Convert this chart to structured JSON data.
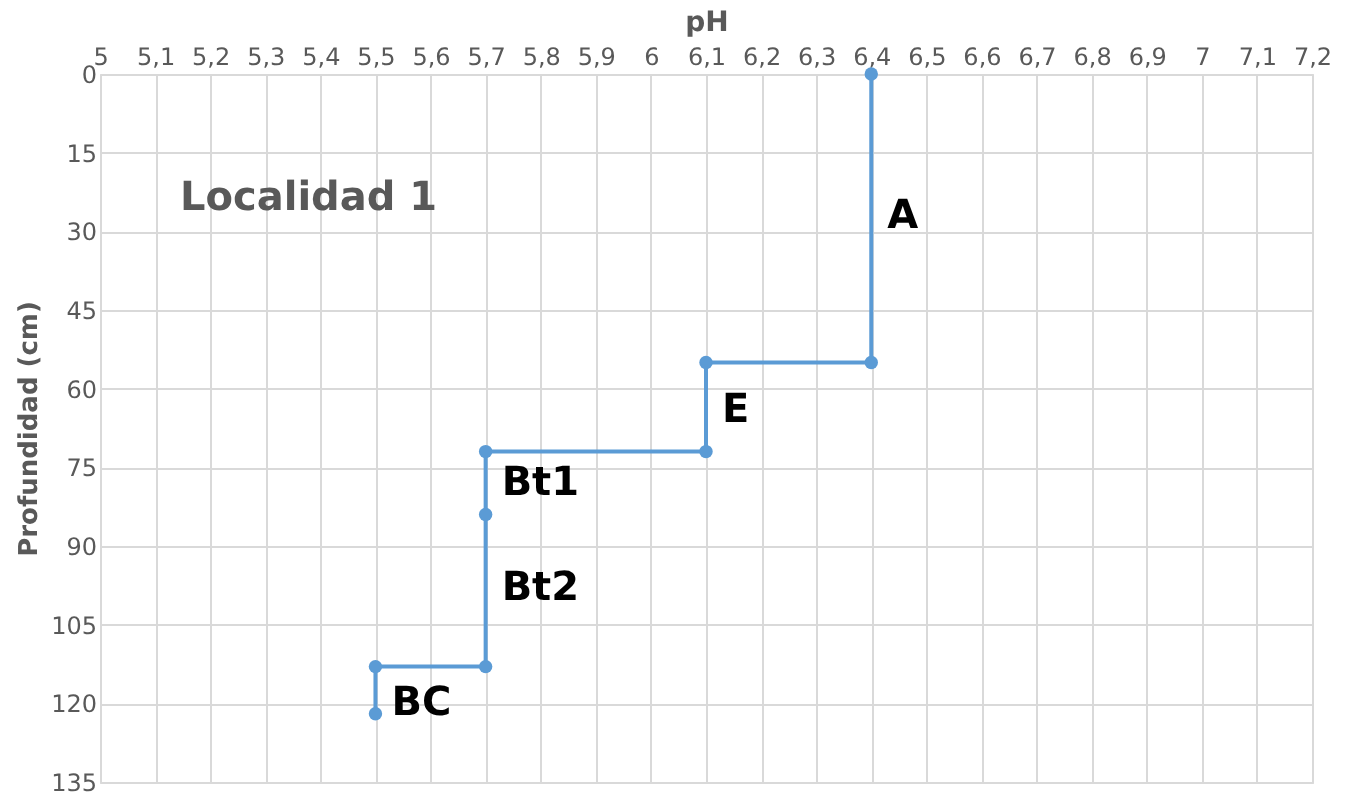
{
  "chart_data": {
    "type": "line",
    "xlabel": "pH",
    "ylabel": "Profundidad (cm)",
    "series": [
      {
        "color": "#5b9bd5",
        "x": [
          6.4,
          6.4,
          6.1,
          6.1,
          5.7,
          5.7,
          5.7,
          5.5,
          5.5
        ],
        "values": [
          0,
          55,
          55,
          72,
          72,
          84,
          113,
          113,
          122
        ]
      }
    ],
    "xlim": [
      5,
      7.2
    ],
    "xticks": [
      5,
      {
        "value": 5.1,
        "label": "5,1"
      },
      {
        "value": 5.2,
        "label": "5,2"
      },
      {
        "value": 5.3,
        "label": "5,3"
      },
      {
        "value": 5.4,
        "label": "5,4"
      },
      {
        "value": 5.5,
        "label": "5,5"
      },
      {
        "value": 5.6,
        "label": "5,6"
      },
      {
        "value": 5.7,
        "label": "5,7"
      },
      {
        "value": 5.8,
        "label": "5,8"
      },
      {
        "value": 5.9,
        "label": "5,9"
      },
      6,
      {
        "value": 6.1,
        "label": "6,1"
      },
      {
        "value": 6.2,
        "label": "6,2"
      },
      {
        "value": 6.3,
        "label": "6,3"
      },
      {
        "value": 6.4,
        "label": "6,4"
      },
      {
        "value": 6.5,
        "label": "6,5"
      },
      {
        "value": 6.6,
        "label": "6,6"
      },
      {
        "value": 6.7,
        "label": "6,7"
      },
      {
        "value": 6.8,
        "label": "6,8"
      },
      {
        "value": 6.9,
        "label": "6,9"
      },
      7,
      {
        "value": 7.1,
        "label": "7,1"
      },
      {
        "value": 7.2,
        "label": "7,2"
      }
    ],
    "ylim": [
      135,
      0
    ],
    "yticks": [
      0,
      15,
      30,
      45,
      60,
      75,
      90,
      105,
      120,
      135
    ],
    "grid": true,
    "marker": "circle",
    "line_style": "solid",
    "annotations": [
      "Localidad 1",
      {
        "text": "A",
        "x": 6.4,
        "y": 27
      },
      {
        "text": "E",
        "x": 6.1,
        "y": 64
      },
      {
        "text": "Bt1",
        "x": 5.7,
        "y": 78
      },
      {
        "text": "Bt2",
        "x": 5.7,
        "y": 98
      },
      {
        "text": "BC",
        "x": 5.5,
        "y": 120
      }
    ]
  }
}
